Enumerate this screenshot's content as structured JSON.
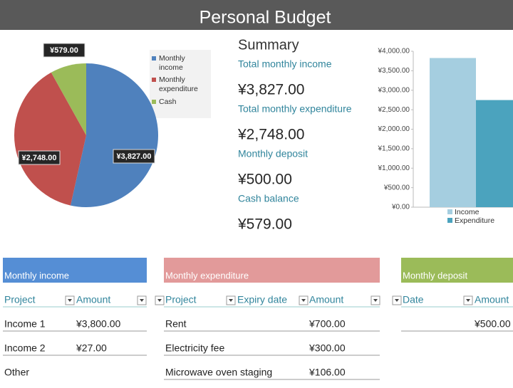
{
  "header": {
    "title": "Personal Budget"
  },
  "pie": {
    "type": "pie",
    "values": [
      3827,
      2748,
      579
    ],
    "value_labels": [
      "¥3,827.00",
      "¥2,748.00",
      "¥579.00"
    ],
    "categories": [
      "Monthly income",
      "Monthly expenditure",
      "Cash"
    ],
    "colors": [
      "#4f81bd",
      "#c0504d",
      "#9bbb59"
    ]
  },
  "summary": {
    "title": "Summary",
    "items": [
      {
        "label": "Total monthly income",
        "value": "¥3,827.00"
      },
      {
        "label": "Total monthly expenditure",
        "value": "¥2,748.00"
      },
      {
        "label": "Monthly deposit",
        "value": "¥500.00"
      },
      {
        "label": "Cash balance",
        "value": "¥579.00"
      }
    ]
  },
  "bar": {
    "type": "bar",
    "series": [
      {
        "name": "Income",
        "color": "#a5cee0",
        "values": [
          3827
        ]
      },
      {
        "name": "Expenditure",
        "color": "#4ba3be",
        "values": [
          2748
        ]
      }
    ],
    "ylim": [
      0,
      4000
    ],
    "yticks": [
      {
        "value": 0,
        "label": "¥0.00"
      },
      {
        "value": 500,
        "label": "¥500.00"
      },
      {
        "value": 1000,
        "label": "¥1,000.00"
      },
      {
        "value": 1500,
        "label": "¥1,500.00"
      },
      {
        "value": 2000,
        "label": "¥2,000.00"
      },
      {
        "value": 2500,
        "label": "¥2,500.00"
      },
      {
        "value": 3000,
        "label": "¥3,000.00"
      },
      {
        "value": 3500,
        "label": "¥3,500.00"
      },
      {
        "value": 4000,
        "label": "¥4,000.00"
      }
    ]
  },
  "tables": [
    {
      "title": "Monthly income",
      "color": "#558ed5",
      "columns": {
        "project": "Project",
        "amount": "Amount"
      },
      "rows": [
        {
          "project": "Income 1",
          "amount": "¥3,800.00"
        },
        {
          "project": "Income 2",
          "amount": "¥27.00"
        },
        {
          "project": "Other"
        }
      ]
    },
    {
      "title": "Monthly expenditure",
      "color": "#e29a9a",
      "columns": {
        "project": "Project",
        "expiry_date": "Expiry date",
        "amount": "Amount"
      },
      "rows": [
        {
          "project": "Rent",
          "amount": "¥700.00"
        },
        {
          "project": "Electricity fee",
          "amount": "¥300.00"
        },
        {
          "project": "Microwave oven staging",
          "amount": "¥106.00"
        }
      ]
    },
    {
      "title": "Monthly deposit",
      "color": "#9bbb59",
      "columns": {
        "date": "Date",
        "amount": "Amount"
      },
      "rows": [
        {
          "amount": "¥500.00"
        }
      ]
    }
  ]
}
